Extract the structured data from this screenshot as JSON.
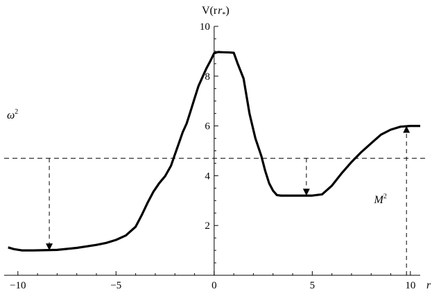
{
  "chart_data": {
    "type": "line",
    "title": "",
    "xlabel": "r",
    "ylabel": "V(r",
    "ylabel_sub": "*",
    "ylabel_close": ")",
    "xlim": [
      -10.7,
      10.5
    ],
    "ylim": [
      0,
      10
    ],
    "x_ticks": [
      -10,
      -5,
      0,
      5,
      10
    ],
    "x_tick_labels": [
      "−10",
      "−5",
      "0",
      "5",
      "10"
    ],
    "y_ticks": [
      2,
      4,
      6,
      8,
      10
    ],
    "y_tick_labels": [
      "2",
      "4",
      "6",
      "8",
      "10"
    ],
    "grid": false,
    "series": [
      {
        "x": [
          -10.5,
          -10.2,
          -9.8,
          -9.2,
          -8.0,
          -7.0,
          -6.0,
          -5.5,
          -5.0,
          -4.5,
          -4.0,
          -3.7,
          -3.4,
          -3.1,
          -2.8,
          -2.5,
          -2.2,
          -2.0,
          -1.8,
          -1.6,
          -1.4,
          -1.2,
          -1.0,
          -0.8,
          -0.6,
          -0.4,
          -0.2,
          0.0,
          0.2,
          0.4,
          0.8,
          1.0,
          1.2,
          1.5,
          1.8,
          2.1,
          2.4,
          2.6,
          2.8,
          3.0,
          3.2,
          3.4,
          4.0,
          5.0,
          5.5,
          6.0,
          6.5,
          7.0,
          7.5,
          8.0,
          8.5,
          9.0,
          9.5,
          10.0,
          10.5
        ],
        "y": [
          1.12,
          1.05,
          1.0,
          1.0,
          1.02,
          1.1,
          1.22,
          1.3,
          1.42,
          1.6,
          1.95,
          2.4,
          2.9,
          3.35,
          3.7,
          3.98,
          4.4,
          4.85,
          5.3,
          5.75,
          6.1,
          6.6,
          7.1,
          7.6,
          7.95,
          8.3,
          8.6,
          8.92,
          8.97,
          8.96,
          8.95,
          8.94,
          8.5,
          7.9,
          6.5,
          5.5,
          4.8,
          4.2,
          3.7,
          3.4,
          3.22,
          3.2,
          3.2,
          3.2,
          3.25,
          3.6,
          4.1,
          4.55,
          4.95,
          5.3,
          5.65,
          5.85,
          5.97,
          6.0,
          6.0
        ]
      }
    ],
    "omega_squared_level": 4.7,
    "annotations": [
      {
        "text_base": "ω",
        "text_sup": "2"
      },
      {
        "text_base": "M",
        "text_sup": "2"
      }
    ],
    "arrows": [
      {
        "x": -8.4,
        "from_y": 4.7,
        "to_y": 1.0,
        "direction": "down"
      },
      {
        "x": 4.7,
        "from_y": 4.7,
        "to_y": 3.2,
        "direction": "down"
      },
      {
        "x": 9.8,
        "from_y": 0.0,
        "to_y": 6.0,
        "direction": "up"
      }
    ]
  }
}
